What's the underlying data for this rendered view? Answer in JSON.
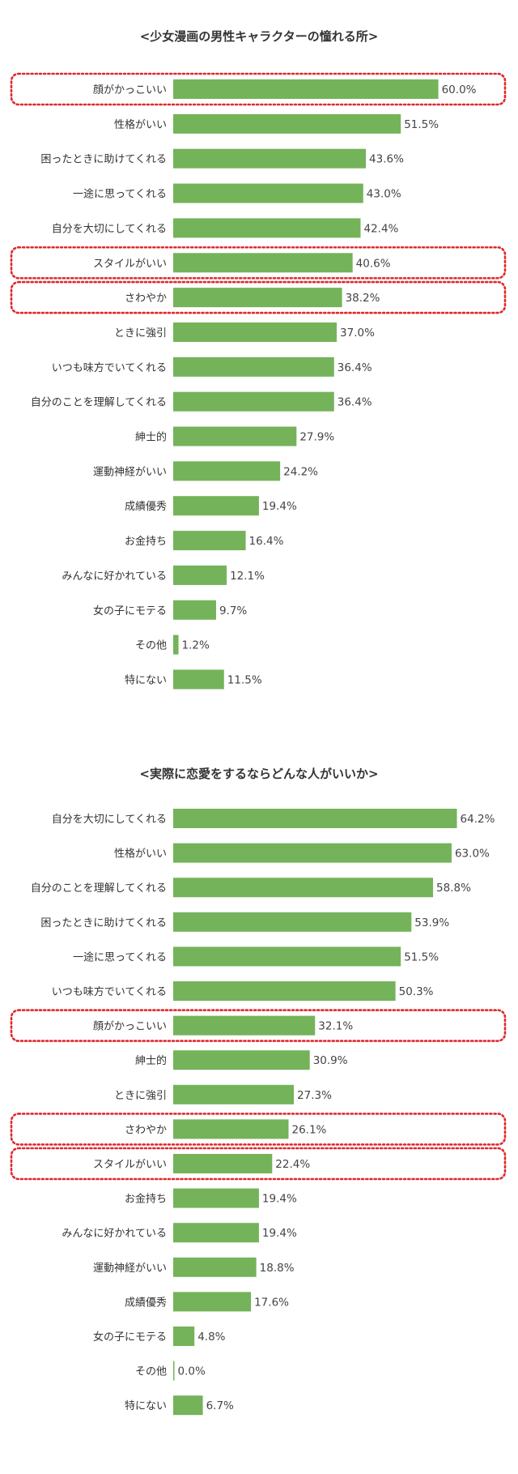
{
  "colors": {
    "bar": "#74b35a",
    "highlight": "#e0282c",
    "text": "#333333"
  },
  "chart_data": [
    {
      "type": "bar",
      "orientation": "horizontal",
      "title": "<少女漫画の男性キャラクターの憧れる所>",
      "unit": "%",
      "xlim": [
        0,
        70
      ],
      "grid": false,
      "categories": [
        "顔がかっこいい",
        "性格がいい",
        "困ったときに助けてくれる",
        "一途に思ってくれる",
        "自分を大切にしてくれる",
        "スタイルがいい",
        "さわやか",
        "ときに強引",
        "いつも味方でいてくれる",
        "自分のことを理解してくれる",
        "紳士的",
        "運動神経がいい",
        "成績優秀",
        "お金持ち",
        "みんなに好かれている",
        "女の子にモテる",
        "その他",
        "特にない"
      ],
      "values": [
        60.0,
        51.5,
        43.6,
        43.0,
        42.4,
        40.6,
        38.2,
        37.0,
        36.4,
        36.4,
        27.9,
        24.2,
        19.4,
        16.4,
        12.1,
        9.7,
        1.2,
        11.5
      ],
      "value_labels": [
        "60.0%",
        "51.5%",
        "43.6%",
        "43.0%",
        "42.4%",
        "40.6%",
        "38.2%",
        "37.0%",
        "36.4%",
        "36.4%",
        "27.9%",
        "24.2%",
        "19.4%",
        "16.4%",
        "12.1%",
        "9.7%",
        "1.2%",
        "11.5%"
      ],
      "highlighted": [
        "顔がかっこいい",
        "スタイルがいい",
        "さわやか"
      ]
    },
    {
      "type": "bar",
      "orientation": "horizontal",
      "title": "<実際に恋愛をするならどんな人がいいか>",
      "unit": "%",
      "xlim": [
        0,
        70
      ],
      "grid": false,
      "categories": [
        "自分を大切にしてくれる",
        "性格がいい",
        "自分のことを理解してくれる",
        "困ったときに助けてくれる",
        "一途に思ってくれる",
        "いつも味方でいてくれる",
        "顔がかっこいい",
        "紳士的",
        "ときに強引",
        "さわやか",
        "スタイルがいい",
        "お金持ち",
        "みんなに好かれている",
        "運動神経がいい",
        "成績優秀",
        "女の子にモテる",
        "その他",
        "特にない"
      ],
      "values": [
        64.2,
        63.0,
        58.8,
        53.9,
        51.5,
        50.3,
        32.1,
        30.9,
        27.3,
        26.1,
        22.4,
        19.4,
        19.4,
        18.8,
        17.6,
        4.8,
        0.0,
        6.7
      ],
      "value_labels": [
        "64.2%",
        "63.0%",
        "58.8%",
        "53.9%",
        "51.5%",
        "50.3%",
        "32.1%",
        "30.9%",
        "27.3%",
        "26.1%",
        "22.4%",
        "19.4%",
        "19.4%",
        "18.8%",
        "17.6%",
        "4.8%",
        "0.0%",
        "6.7%"
      ],
      "highlighted": [
        "顔がかっこいい",
        "さわやか",
        "スタイルがいい"
      ]
    }
  ]
}
